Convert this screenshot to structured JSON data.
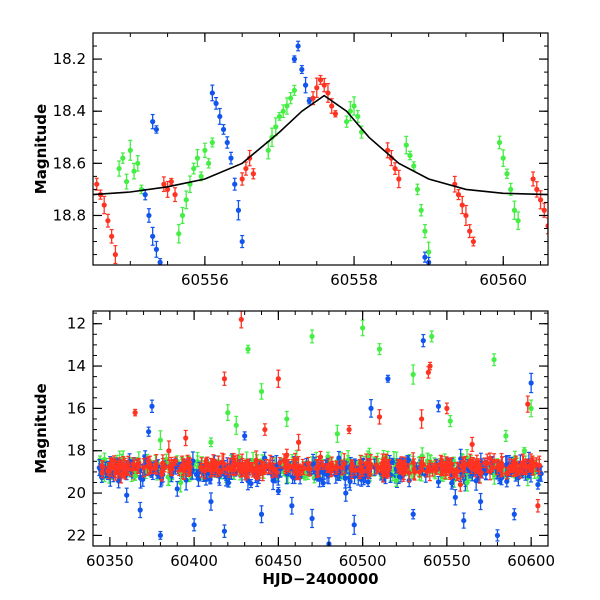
{
  "colors": {
    "green": "#44ee44",
    "blue": "#1155ee",
    "red": "#ff3322",
    "model": "#000000"
  },
  "chart_data": [
    {
      "type": "scatter",
      "xlabel": "",
      "ylabel": "Magnitude",
      "xlim": [
        60554.5,
        60560.6
      ],
      "ylim": [
        18.99,
        18.1
      ],
      "y_inverted": true,
      "x_ticks": [
        60556,
        60558,
        60560
      ],
      "x_tick_labels": [
        "60556",
        "60558",
        "60560"
      ],
      "y_ticks": [
        18.2,
        18.4,
        18.6,
        18.8
      ],
      "y_tick_labels": [
        "18.2",
        "18.4",
        "18.6",
        "18.8"
      ],
      "model_curve": {
        "name": "",
        "x": [
          60554.5,
          60555.0,
          60555.5,
          60556.0,
          60556.5,
          60557.0,
          60557.3,
          60557.6,
          60557.9,
          60558.2,
          60558.6,
          60559.0,
          60559.5,
          60560.0,
          60560.6
        ],
        "y": [
          18.72,
          18.71,
          18.69,
          18.66,
          18.6,
          18.48,
          18.4,
          18.34,
          18.4,
          18.5,
          18.6,
          18.66,
          18.7,
          18.715,
          18.72
        ]
      },
      "series": [
        {
          "name": "",
          "color": "green",
          "points": [
            [
              60554.85,
              18.62
            ],
            [
              60554.9,
              18.58
            ],
            [
              60554.95,
              18.67
            ],
            [
              60555.0,
              18.55
            ],
            [
              60555.05,
              18.63
            ],
            [
              60555.1,
              18.6
            ],
            [
              60555.15,
              18.7
            ],
            [
              60555.65,
              18.87
            ],
            [
              60555.7,
              18.8
            ],
            [
              60555.75,
              18.74
            ],
            [
              60555.8,
              18.68
            ],
            [
              60555.85,
              18.62
            ],
            [
              60555.9,
              18.58
            ],
            [
              60555.95,
              18.65
            ],
            [
              60556.0,
              18.55
            ],
            [
              60556.05,
              18.6
            ],
            [
              60556.1,
              18.52
            ],
            [
              60556.85,
              18.55
            ],
            [
              60556.9,
              18.5
            ],
            [
              60556.95,
              18.46
            ],
            [
              60557.0,
              18.42
            ],
            [
              60557.05,
              18.4
            ],
            [
              60557.1,
              18.38
            ],
            [
              60557.15,
              18.35
            ],
            [
              60557.2,
              18.32
            ],
            [
              60557.9,
              18.44
            ],
            [
              60557.95,
              18.4
            ],
            [
              60558.0,
              18.38
            ],
            [
              60558.05,
              18.42
            ],
            [
              60558.1,
              18.48
            ],
            [
              60558.7,
              18.53
            ],
            [
              60558.75,
              18.57
            ],
            [
              60558.8,
              18.61
            ],
            [
              60558.85,
              18.7
            ],
            [
              60558.9,
              18.78
            ],
            [
              60558.95,
              18.86
            ],
            [
              60559.0,
              18.94
            ],
            [
              60559.95,
              18.52
            ],
            [
              60560.0,
              18.58
            ],
            [
              60560.05,
              18.64
            ],
            [
              60560.1,
              18.7
            ],
            [
              60560.15,
              18.78
            ],
            [
              60560.2,
              18.82
            ]
          ]
        },
        {
          "name": "",
          "color": "blue",
          "points": [
            [
              60555.2,
              18.72
            ],
            [
              60555.25,
              18.8
            ],
            [
              60555.3,
              18.88
            ],
            [
              60555.35,
              18.93
            ],
            [
              60555.4,
              18.98
            ],
            [
              60555.3,
              18.44
            ],
            [
              60555.35,
              18.47
            ],
            [
              60556.1,
              18.33
            ],
            [
              60556.15,
              18.37
            ],
            [
              60556.2,
              18.42
            ],
            [
              60556.25,
              18.47
            ],
            [
              60556.3,
              18.52
            ],
            [
              60556.35,
              18.58
            ],
            [
              60556.4,
              18.68
            ],
            [
              60556.45,
              18.78
            ],
            [
              60556.5,
              18.9
            ],
            [
              60557.2,
              18.2
            ],
            [
              60557.25,
              18.15
            ],
            [
              60557.3,
              18.24
            ],
            [
              60557.35,
              18.3
            ],
            [
              60557.4,
              18.36
            ],
            [
              60558.95,
              18.96
            ],
            [
              60559.0,
              18.98
            ]
          ]
        },
        {
          "name": "",
          "color": "red",
          "points": [
            [
              60554.55,
              18.68
            ],
            [
              60554.6,
              18.72
            ],
            [
              60554.65,
              18.76
            ],
            [
              60554.7,
              18.82
            ],
            [
              60554.75,
              18.88
            ],
            [
              60554.8,
              18.95
            ],
            [
              60555.45,
              18.68
            ],
            [
              60555.5,
              18.7
            ],
            [
              60555.55,
              18.67
            ],
            [
              60555.6,
              18.72
            ],
            [
              60556.5,
              18.66
            ],
            [
              60556.55,
              18.62
            ],
            [
              60556.6,
              18.58
            ],
            [
              60556.65,
              18.64
            ],
            [
              60557.45,
              18.35
            ],
            [
              60557.5,
              18.31
            ],
            [
              60557.55,
              18.28
            ],
            [
              60557.6,
              18.3
            ],
            [
              60557.65,
              18.33
            ],
            [
              60557.7,
              18.38
            ],
            [
              60557.75,
              18.41
            ],
            [
              60558.45,
              18.55
            ],
            [
              60558.5,
              18.58
            ],
            [
              60558.55,
              18.62
            ],
            [
              60558.6,
              18.66
            ],
            [
              60559.35,
              18.68
            ],
            [
              60559.4,
              18.72
            ],
            [
              60559.45,
              18.76
            ],
            [
              60559.5,
              18.8
            ],
            [
              60559.55,
              18.86
            ],
            [
              60559.6,
              18.9
            ],
            [
              60560.4,
              18.66
            ],
            [
              60560.45,
              18.7
            ],
            [
              60560.5,
              18.74
            ],
            [
              60560.55,
              18.78
            ],
            [
              60560.6,
              18.84
            ]
          ]
        }
      ]
    },
    {
      "type": "scatter",
      "xlabel": "HJD−2400000",
      "ylabel": "Magnitude",
      "xlim": [
        60340,
        60610
      ],
      "ylim": [
        22.5,
        11.4
      ],
      "y_inverted": true,
      "x_ticks": [
        60350,
        60400,
        60450,
        60500,
        60550,
        60600
      ],
      "x_tick_labels": [
        "60350",
        "60400",
        "60450",
        "60500",
        "60550",
        "60600"
      ],
      "y_ticks": [
        12,
        14,
        16,
        18,
        20,
        22
      ],
      "y_tick_labels": [
        "12",
        "14",
        "16",
        "18",
        "20",
        "22"
      ],
      "baseline_magnitude": 18.8,
      "series": [
        {
          "name": "",
          "color": "green",
          "points": [
            [
              60365,
              19.2
            ],
            [
              60380,
              17.5
            ],
            [
              60392,
              19.5
            ],
            [
              60410,
              17.6
            ],
            [
              60425,
              16.8
            ],
            [
              60432,
              13.2
            ],
            [
              60440,
              15.2
            ],
            [
              60455,
              16.5
            ],
            [
              60470,
              12.6
            ],
            [
              60485,
              17.2
            ],
            [
              60500,
              12.2
            ],
            [
              60510,
              13.2
            ],
            [
              60520,
              19.4
            ],
            [
              60530,
              14.4
            ],
            [
              60541,
              12.6
            ],
            [
              60552,
              16.6
            ],
            [
              60562,
              19.5
            ],
            [
              60578,
              13.7
            ],
            [
              60585,
              17.3
            ],
            [
              60596,
              18.0
            ],
            [
              60600,
              16.0
            ],
            [
              60420,
              16.2
            ]
          ]
        },
        {
          "name": "",
          "color": "blue",
          "points": [
            [
              60360,
              20.1
            ],
            [
              60368,
              20.8
            ],
            [
              60373,
              17.1
            ],
            [
              60375,
              15.9
            ],
            [
              60380,
              22.0
            ],
            [
              60390,
              19.8
            ],
            [
              60400,
              21.5
            ],
            [
              60410,
              20.4
            ],
            [
              60418,
              21.8
            ],
            [
              60430,
              17.3
            ],
            [
              60440,
              21.0
            ],
            [
              60450,
              19.9
            ],
            [
              60458,
              20.6
            ],
            [
              60470,
              21.2
            ],
            [
              60480,
              22.4
            ],
            [
              60490,
              20.0
            ],
            [
              60495,
              21.5
            ],
            [
              60505,
              16.0
            ],
            [
              60515,
              14.6
            ],
            [
              60530,
              21.0
            ],
            [
              60536,
              12.8
            ],
            [
              60545,
              15.9
            ],
            [
              60555,
              20.2
            ],
            [
              60560,
              21.3
            ],
            [
              60570,
              20.4
            ],
            [
              60580,
              22.0
            ],
            [
              60590,
              21.0
            ],
            [
              60600,
              14.8
            ],
            [
              60604,
              19.6
            ]
          ]
        },
        {
          "name": "",
          "color": "red",
          "points": [
            [
              60365,
              16.2
            ],
            [
              60385,
              18.0
            ],
            [
              60395,
              17.4
            ],
            [
              60418,
              14.6
            ],
            [
              60428,
              11.8
            ],
            [
              60442,
              17.0
            ],
            [
              60450,
              14.6
            ],
            [
              60455,
              18.2
            ],
            [
              60462,
              17.6
            ],
            [
              60475,
              18.3
            ],
            [
              60492,
              17.0
            ],
            [
              60510,
              16.4
            ],
            [
              60522,
              18.9
            ],
            [
              60535,
              16.5
            ],
            [
              60539,
              14.3
            ],
            [
              60540,
              14.0
            ],
            [
              60550,
              16.0
            ],
            [
              60558,
              19.6
            ],
            [
              60565,
              17.7
            ],
            [
              60578,
              18.5
            ],
            [
              60595,
              18.6
            ],
            [
              60598,
              15.8
            ],
            [
              60604,
              20.6
            ]
          ]
        }
      ]
    }
  ]
}
